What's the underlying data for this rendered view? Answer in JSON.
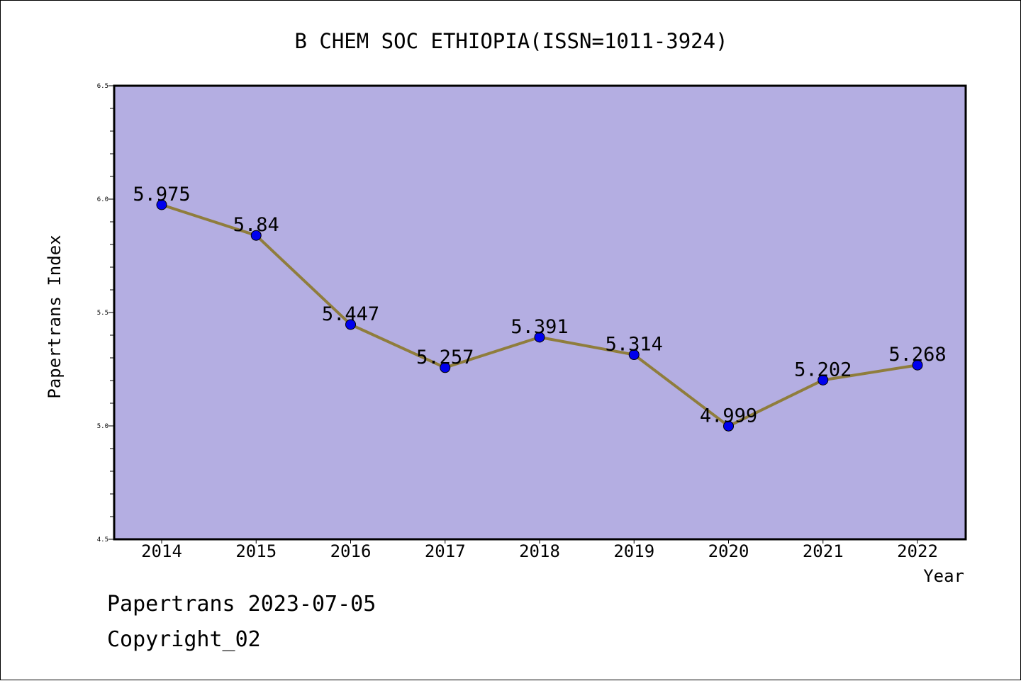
{
  "chart_data": {
    "type": "line",
    "title": "B CHEM SOC ETHIOPIA(ISSN=1011-3924)",
    "xlabel": "Year",
    "ylabel": "Papertrans Index",
    "ylim": [
      4.5,
      6.5
    ],
    "yticks": [
      "4.5",
      "5.0",
      "5.5",
      "6.0",
      "6.5"
    ],
    "categories": [
      "2014",
      "2015",
      "2016",
      "2017",
      "2018",
      "2019",
      "2020",
      "2021",
      "2022"
    ],
    "series": [
      {
        "values": [
          5.975,
          5.84,
          5.447,
          5.257,
          5.391,
          5.314,
          4.999,
          5.202,
          5.268
        ],
        "labels": [
          "5.975",
          "5.84",
          "5.447",
          "5.257",
          "5.391",
          "5.314",
          "4.999",
          "5.202",
          "5.268"
        ]
      }
    ],
    "grid": false,
    "colors": {
      "plot_background": "#b4aee2",
      "line": "#8f7d3c",
      "marker": "#0000ee"
    }
  },
  "footer": {
    "line1": "Papertrans 2023-07-05",
    "line2": "Copyright_02"
  }
}
